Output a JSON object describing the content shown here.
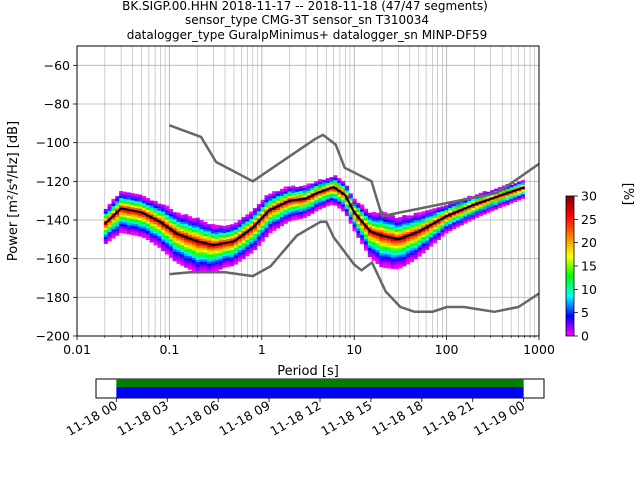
{
  "chart_data": [
    {
      "type": "heatmap",
      "title_lines": [
        "BK.SIGP.00.HHN   2018-11-17 -- 2018-11-18  (47/47 segments)",
        "sensor_type CMG-3T sensor_sn T310034",
        "datalogger_type GuralpMinimus+ datalogger_sn MINP-DF59"
      ],
      "xlabel": "Period [s]",
      "ylabel": "Power [m²/s⁴/Hz] [dB]",
      "xscale": "log",
      "xlim": [
        0.01,
        1000
      ],
      "ylim": [
        -200,
        -50
      ],
      "xticks": [
        0.01,
        0.1,
        1,
        10,
        100,
        1000
      ],
      "xtick_labels": [
        "0.01",
        "0.1",
        "1",
        "10",
        "100",
        "1000"
      ],
      "yticks": [
        -200,
        -180,
        -160,
        -140,
        -120,
        -100,
        -80,
        -60
      ],
      "grid": true,
      "colorbar": {
        "label": "[%]",
        "ticks": [
          0,
          5,
          10,
          15,
          20,
          25,
          30
        ],
        "range": [
          0,
          30
        ],
        "colors": [
          "#ff00ff",
          "#0000ff",
          "#00ffff",
          "#00ff00",
          "#ffff00",
          "#ff8000",
          "#ff0000",
          "#800000"
        ]
      },
      "series": [
        {
          "name": "",
          "style": "noise-model-upper",
          "color": "#666666",
          "points": [
            [
              0.1,
              -91
            ],
            [
              0.22,
              -97
            ],
            [
              0.32,
              -110
            ],
            [
              0.8,
              -120
            ],
            [
              3.8,
              -98
            ],
            [
              4.6,
              -96
            ],
            [
              6.3,
              -101
            ],
            [
              7.9,
              -113
            ],
            [
              15.4,
              -120
            ],
            [
              20,
              -138
            ],
            [
              354,
              -126
            ],
            [
              1000,
              -111
            ]
          ]
        },
        {
          "name": "",
          "style": "noise-model-lower",
          "color": "#666666",
          "points": [
            [
              0.1,
              -168
            ],
            [
              0.17,
              -167
            ],
            [
              0.4,
              -167
            ],
            [
              0.8,
              -169
            ],
            [
              1.24,
              -164
            ],
            [
              2.4,
              -148
            ],
            [
              4.3,
              -141
            ],
            [
              5,
              -141
            ],
            [
              6,
              -149
            ],
            [
              10,
              -163
            ],
            [
              12,
              -166
            ],
            [
              15.6,
              -162
            ],
            [
              21.9,
              -177
            ],
            [
              31.6,
              -185
            ],
            [
              45,
              -187.5
            ],
            [
              70,
              -187.5
            ],
            [
              101,
              -185
            ],
            [
              154,
              -185
            ],
            [
              328,
              -187.5
            ],
            [
              600,
              -185
            ],
            [
              1000,
              -178
            ]
          ]
        },
        {
          "name": "",
          "style": "mode",
          "color": "#000000",
          "points": [
            [
              0.02,
              -142
            ],
            [
              0.03,
              -134
            ],
            [
              0.05,
              -136
            ],
            [
              0.08,
              -141
            ],
            [
              0.12,
              -147
            ],
            [
              0.2,
              -151
            ],
            [
              0.3,
              -153
            ],
            [
              0.5,
              -151
            ],
            [
              0.8,
              -144
            ],
            [
              1.2,
              -135
            ],
            [
              2,
              -130
            ],
            [
              3,
              -129
            ],
            [
              4,
              -126
            ],
            [
              6,
              -123
            ],
            [
              8,
              -127
            ],
            [
              10,
              -136
            ],
            [
              15,
              -146
            ],
            [
              20,
              -148
            ],
            [
              30,
              -150
            ],
            [
              50,
              -146
            ],
            [
              100,
              -138
            ],
            [
              200,
              -132
            ],
            [
              400,
              -127
            ],
            [
              700,
              -123
            ]
          ]
        }
      ],
      "density_spread_db": [
        [
          0.02,
          10
        ],
        [
          0.03,
          12
        ],
        [
          0.06,
          12
        ],
        [
          0.1,
          14
        ],
        [
          0.2,
          16
        ],
        [
          0.4,
          12
        ],
        [
          1,
          12
        ],
        [
          2,
          10
        ],
        [
          5,
          8
        ],
        [
          10,
          9
        ],
        [
          20,
          16
        ],
        [
          40,
          14
        ],
        [
          100,
          8
        ],
        [
          300,
          6
        ],
        [
          700,
          5
        ]
      ]
    },
    {
      "type": "bar",
      "subtype": "timeline",
      "xtick_labels": [
        "11-18 00",
        "11-18 03",
        "11-18 06",
        "11-18 09",
        "11-18 12",
        "11-18 15",
        "11-18 18",
        "11-18 21",
        "11-19 00"
      ],
      "xlim_hours": [
        -1.2,
        25.2
      ],
      "data_coverage_hours": [
        0,
        24
      ],
      "segments_coverage_hours": [
        0,
        24
      ],
      "colors": {
        "data": "#0000ff",
        "segments": "#008000"
      }
    }
  ]
}
